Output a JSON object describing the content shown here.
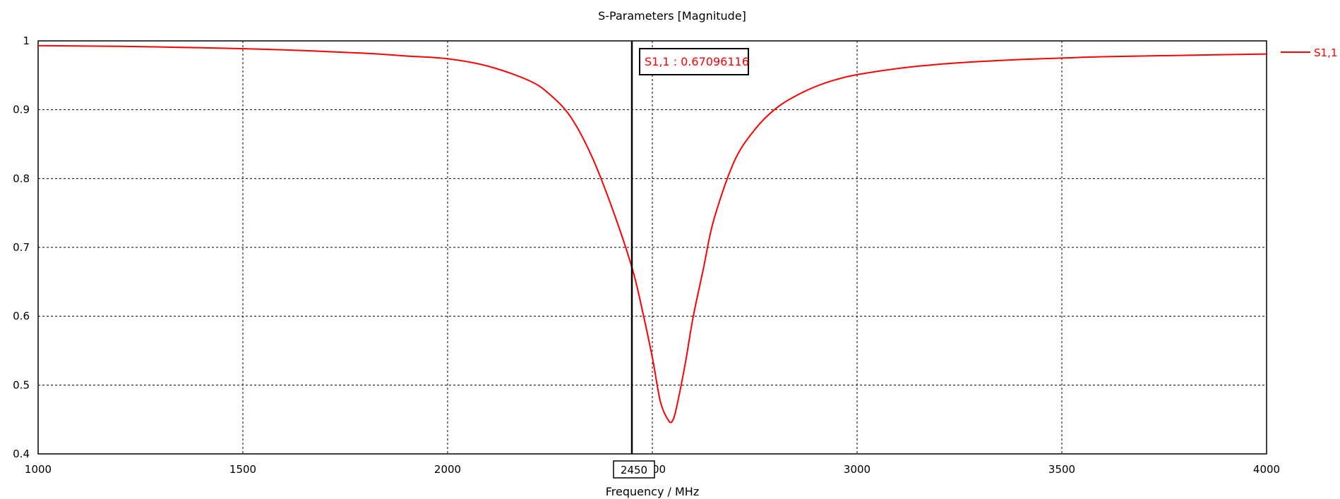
{
  "chart_data": {
    "type": "line",
    "title": "S-Parameters [Magnitude]",
    "xlabel": "Frequency / MHz",
    "ylabel": "",
    "xlim": [
      1000,
      4000
    ],
    "ylim": [
      0.4,
      1
    ],
    "x_ticks": [
      1000,
      1500,
      2000,
      2500,
      3000,
      3500,
      4000
    ],
    "y_ticks": [
      0.4,
      0.5,
      0.6,
      0.7,
      0.8,
      0.9,
      1
    ],
    "x_tick_labels": [
      "1000",
      "1500",
      "2000",
      "2500",
      "3000",
      "3500",
      "4000"
    ],
    "y_tick_labels": [
      "0.4",
      "0.5",
      "0.6",
      "0.7",
      "0.8",
      "0.9",
      "1"
    ],
    "grid": true,
    "legend_position": "right",
    "series": [
      {
        "name": "S1,1",
        "color": "#ff0000",
        "x": [
          1000,
          1200,
          1400,
          1600,
          1800,
          1900,
          2000,
          2100,
          2200,
          2250,
          2300,
          2350,
          2400,
          2450,
          2475,
          2500,
          2520,
          2540,
          2550,
          2560,
          2580,
          2600,
          2625,
          2650,
          2700,
          2750,
          2800,
          2850,
          2900,
          2950,
          3000,
          3100,
          3200,
          3300,
          3400,
          3500,
          3600,
          3800,
          4000
        ],
        "y": [
          0.993,
          0.992,
          0.99,
          0.987,
          0.982,
          0.978,
          0.974,
          0.963,
          0.942,
          0.922,
          0.89,
          0.835,
          0.76,
          0.671,
          0.61,
          0.54,
          0.475,
          0.448,
          0.449,
          0.47,
          0.53,
          0.6,
          0.67,
          0.74,
          0.825,
          0.871,
          0.901,
          0.92,
          0.934,
          0.944,
          0.951,
          0.96,
          0.966,
          0.97,
          0.973,
          0.975,
          0.977,
          0.979,
          0.981
        ]
      }
    ],
    "marker": {
      "x": 2450,
      "x_label": "2450",
      "label": "S1,1 : 0.67096116",
      "color": "#ff0000"
    }
  }
}
